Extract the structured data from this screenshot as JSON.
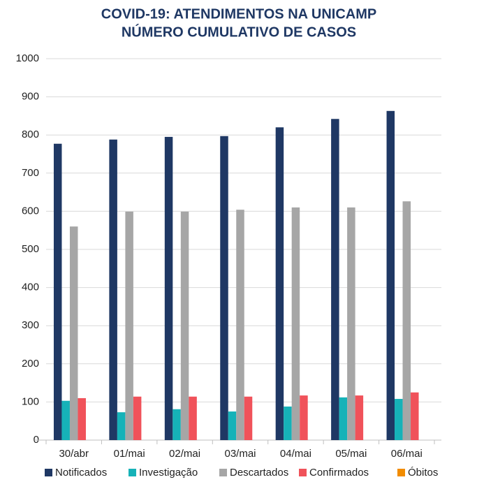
{
  "chart_data": {
    "type": "bar",
    "title": "COVID-19: ATENDIMENTOS NA UNICAMP",
    "subtitle": "NÚMERO CUMULATIVO DE CASOS",
    "categories": [
      "30/abr",
      "01/mai",
      "02/mai",
      "03/mai",
      "04/mai",
      "05/mai",
      "06/mai"
    ],
    "series": [
      {
        "name": "Notificados",
        "color": "#1f3864",
        "values": [
          777,
          788,
          795,
          797,
          820,
          842,
          863
        ]
      },
      {
        "name": "Investigação",
        "color": "#16b2b8",
        "values": [
          103,
          73,
          81,
          75,
          88,
          112,
          108
        ]
      },
      {
        "name": "Descartados",
        "color": "#a6a6a6",
        "values": [
          560,
          599,
          599,
          604,
          610,
          610,
          626
        ]
      },
      {
        "name": "Confirmados",
        "color": "#f0525a",
        "values": [
          110,
          114,
          114,
          114,
          117,
          117,
          125
        ]
      },
      {
        "name": "Óbitos",
        "color": "#f28c00",
        "values": [
          0,
          0,
          0,
          0,
          0,
          0,
          0
        ]
      }
    ],
    "ylim": [
      0,
      1000
    ],
    "yticks": [
      0,
      100,
      200,
      300,
      400,
      500,
      600,
      700,
      800,
      900,
      1000
    ],
    "grid": true
  }
}
